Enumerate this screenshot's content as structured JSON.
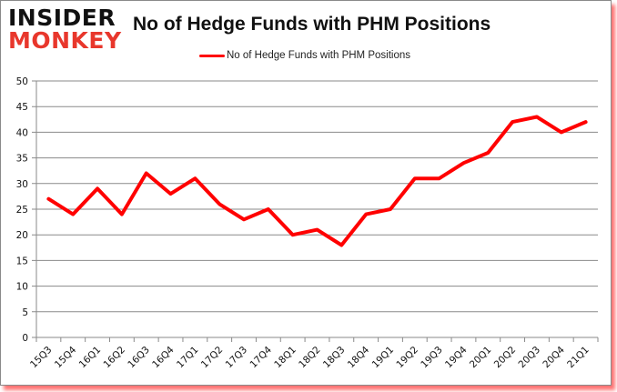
{
  "logo": {
    "line1": "INSIDER",
    "line2": "MONKEY"
  },
  "colors": {
    "series": "#ff0000",
    "grid": "#8a8a8a",
    "logo_accent": "#e8372c",
    "shadow": "#ff0000"
  },
  "chart_data": {
    "type": "line",
    "title": "No of Hedge Funds with PHM Positions",
    "xlabel": "",
    "ylabel": "",
    "ylim": [
      0,
      50
    ],
    "yticks": [
      0,
      5,
      10,
      15,
      20,
      25,
      30,
      35,
      40,
      45,
      50
    ],
    "grid": true,
    "legend_position": "top",
    "categories": [
      "15Q3",
      "15Q4",
      "16Q1",
      "16Q2",
      "16Q3",
      "16Q4",
      "17Q1",
      "17Q2",
      "17Q3",
      "17Q4",
      "18Q1",
      "18Q2",
      "18Q3",
      "18Q4",
      "19Q1",
      "19Q2",
      "19Q3",
      "19Q4",
      "20Q1",
      "20Q2",
      "20Q3",
      "20Q4",
      "21Q1"
    ],
    "series": [
      {
        "name": "No of Hedge Funds with PHM Positions",
        "values": [
          27,
          24,
          29,
          24,
          32,
          28,
          31,
          26,
          23,
          25,
          20,
          21,
          18,
          24,
          25,
          31,
          31,
          34,
          36,
          42,
          43,
          40,
          42
        ]
      }
    ]
  }
}
